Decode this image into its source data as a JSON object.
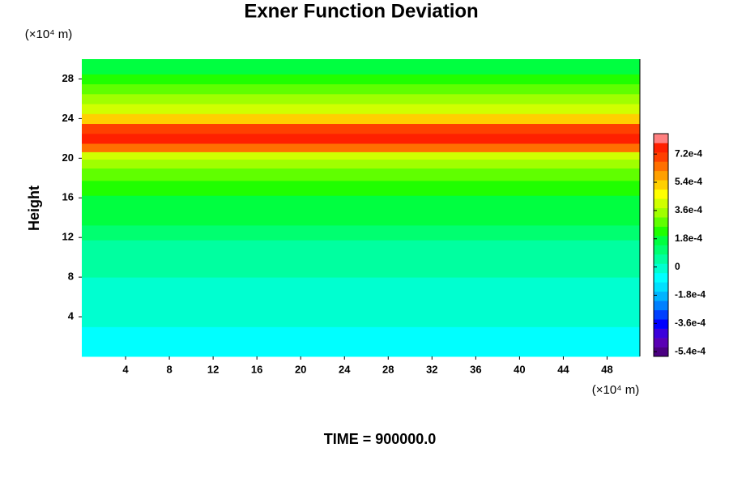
{
  "chart_data": {
    "type": "heatmap",
    "title": "Exner Function Deviation",
    "y_label": "Height",
    "y_unit": "(×10⁴ m)",
    "x_unit": "(×10⁴ m)",
    "footer": "TIME = 900000.0",
    "xlim": [
      0,
      51
    ],
    "xticks": [
      4,
      8,
      12,
      16,
      20,
      24,
      28,
      32,
      36,
      40,
      44,
      48
    ],
    "ylim": [
      0,
      30
    ],
    "yticks": [
      4,
      8,
      12,
      16,
      20,
      24,
      28
    ],
    "heights": [
      0,
      2,
      4,
      5.5,
      7,
      9,
      11,
      12.5,
      14,
      15.5,
      17,
      18.5,
      19.5,
      20.3,
      21,
      22,
      23,
      24,
      25,
      26,
      27,
      28,
      29,
      30
    ],
    "values": [
      -6e-05,
      -5e-05,
      -3e-05,
      -2e-05,
      1e-05,
      3e-05,
      6e-05,
      0.00012,
      0.00016,
      0.00018,
      0.00022,
      0.0003,
      0.00035,
      0.0004,
      0.00062,
      0.00074,
      0.0007,
      0.00052,
      0.00042,
      0.00032,
      0.00026,
      0.00021,
      0.00018,
      0.00016
    ],
    "clim": [
      -0.00057,
      0.00085
    ],
    "colormap": [
      "#4b0082",
      "#5a00b4",
      "#3c00dc",
      "#0000ff",
      "#0040ff",
      "#0080ff",
      "#00b4ff",
      "#00e0ff",
      "#00ffff",
      "#00ffd0",
      "#00ffa0",
      "#00ff70",
      "#00ff40",
      "#20ff00",
      "#60ff00",
      "#a0ff00",
      "#d0ff00",
      "#ffff00",
      "#ffd000",
      "#ffa000",
      "#ff7000",
      "#ff4000",
      "#ff2000",
      "#ff8080"
    ],
    "cticks": [
      {
        "value": -0.00054,
        "label": "-5.4e-4"
      },
      {
        "value": -0.00036,
        "label": "-3.6e-4"
      },
      {
        "value": -0.00018,
        "label": "-1.8e-4"
      },
      0,
      {
        "value": 0.00018,
        "label": "1.8e-4"
      },
      {
        "value": 0.00036,
        "label": "3.6e-4"
      },
      {
        "value": 0.00054,
        "label": "5.4e-4"
      },
      {
        "value": 0.00072,
        "label": "7.2e-4"
      }
    ]
  }
}
